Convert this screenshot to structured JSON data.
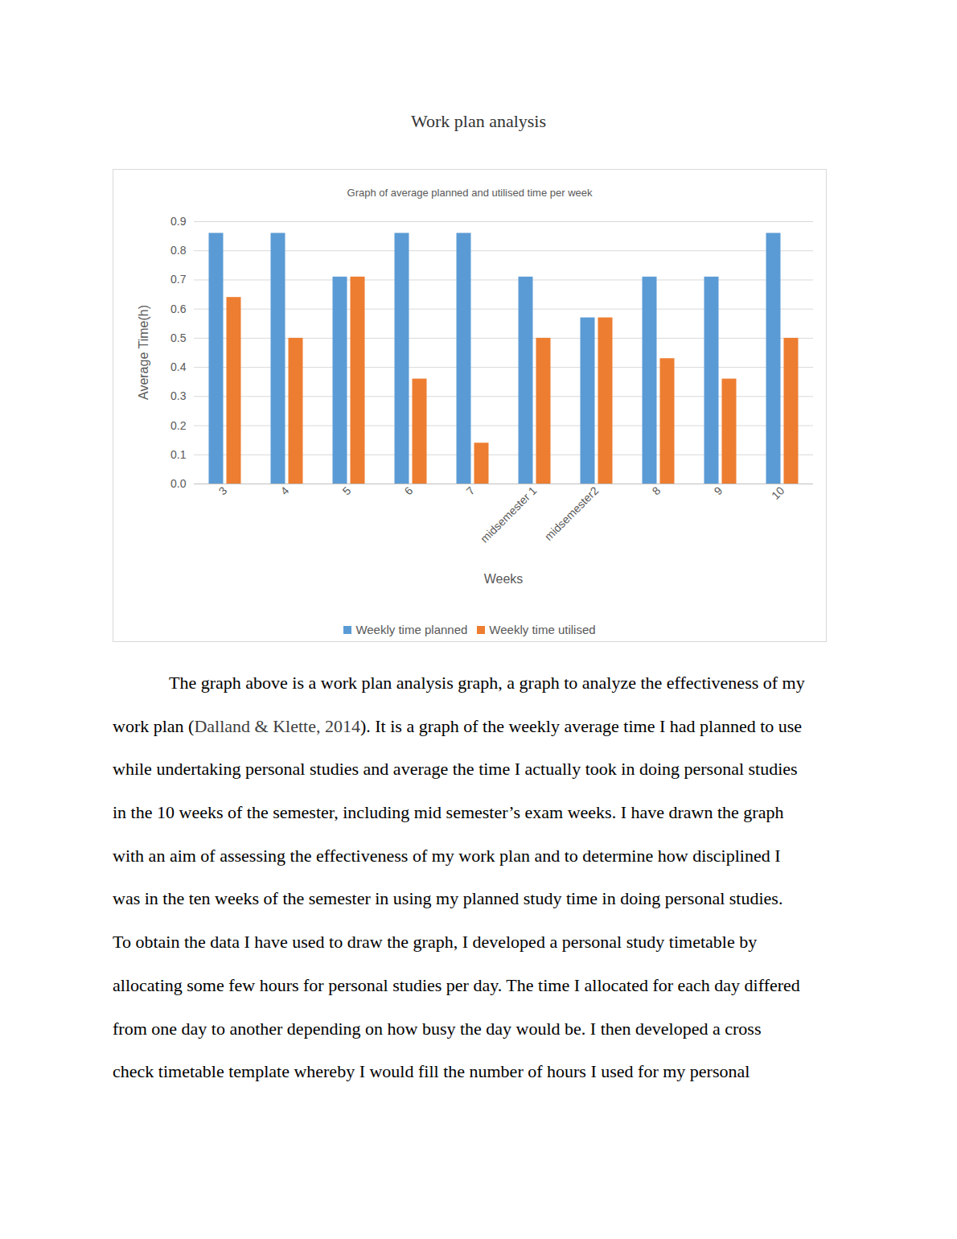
{
  "heading": "Work plan analysis",
  "chart_data": {
    "type": "bar",
    "title": "Graph of average planned and utilised time per week",
    "x_label": "Weeks",
    "y_label": "Average Time(h)",
    "categories": [
      "3",
      "4",
      "5",
      "6",
      "7",
      "midsemester 1",
      "midsemester2",
      "8",
      "9",
      "10"
    ],
    "series": [
      {
        "name": "Weekly time planned",
        "color": "#5b9bd5",
        "values": [
          0.86,
          0.86,
          0.71,
          0.86,
          0.86,
          0.71,
          0.57,
          0.71,
          0.71,
          0.86
        ]
      },
      {
        "name": "Weekly time utilised",
        "color": "#ed7d31",
        "values": [
          0.64,
          0.5,
          0.71,
          0.36,
          0.14,
          0.5,
          0.57,
          0.43,
          0.36,
          0.5
        ]
      }
    ],
    "ylim": [
      0,
      0.9
    ],
    "yticks": [
      0,
      0.1,
      0.2,
      0.3,
      0.4,
      0.5,
      0.6,
      0.7,
      0.8,
      0.9
    ],
    "grid": true,
    "legend": "bottom"
  },
  "paragraph": {
    "lines": [
      [
        "The graph above is a work plan analysis graph, a graph to analyze the effectiveness of my"
      ],
      [
        "work plan (",
        {
          "citation": "Dalland & Klette, 2014"
        },
        "). It is a graph of the weekly average time I had planned to use"
      ],
      [
        "while undertaking personal studies and average the time I actually took in doing personal studies"
      ],
      [
        "in the 10 weeks of the semester, including mid semester’s exam weeks. I have drawn the graph"
      ],
      [
        "with an aim of assessing the effectiveness of my work plan and to determine how disciplined I"
      ],
      [
        "was in the ten weeks of the semester in using my planned study time in doing personal studies."
      ],
      [
        "To obtain the data I have used to draw the graph, I developed a personal study timetable by"
      ],
      [
        "allocating some few hours for personal studies per day. The time I allocated for each day differed"
      ],
      [
        "from one day to another depending on how busy the day would be. I then developed a cross"
      ],
      [
        "check timetable template whereby I would fill the number of hours I used for my personal"
      ]
    ]
  }
}
